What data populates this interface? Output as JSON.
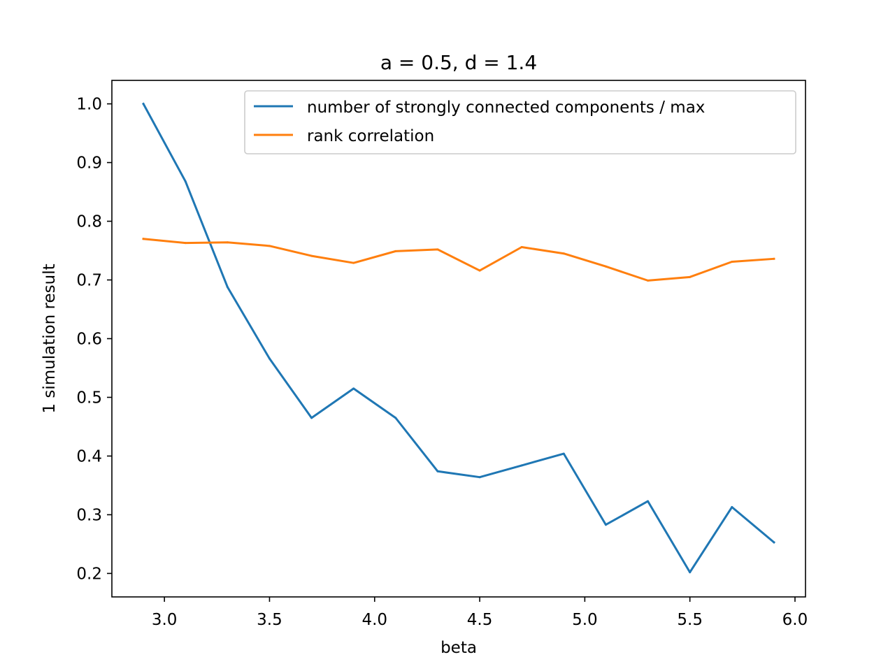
{
  "chart_data": {
    "type": "line",
    "title": "a = 0.5, d = 1.4",
    "xlabel": "beta",
    "ylabel": "1 simulation result",
    "xlim": [
      2.75,
      6.05
    ],
    "ylim": [
      0.16,
      1.04
    ],
    "xticks": [
      3.0,
      3.5,
      4.0,
      4.5,
      5.0,
      5.5,
      6.0
    ],
    "xtick_labels": [
      "3.0",
      "3.5",
      "4.0",
      "4.5",
      "5.0",
      "5.5",
      "6.0"
    ],
    "yticks": [
      0.2,
      0.3,
      0.4,
      0.5,
      0.6,
      0.7,
      0.8,
      0.9,
      1.0
    ],
    "ytick_labels": [
      "0.2",
      "0.3",
      "0.4",
      "0.5",
      "0.6",
      "0.7",
      "0.8",
      "0.9",
      "1.0"
    ],
    "grid": false,
    "legend_position": "top-right",
    "x": [
      2.9,
      3.1,
      3.3,
      3.5,
      3.7,
      3.9,
      4.1,
      4.3,
      4.5,
      4.7,
      4.9,
      5.1,
      5.3,
      5.5,
      5.7,
      5.9
    ],
    "series": [
      {
        "name": "number of strongly connected components / max",
        "color": "#1f77b4",
        "values": [
          1.0,
          0.868,
          0.688,
          0.566,
          0.465,
          0.515,
          0.465,
          0.374,
          0.364,
          0.384,
          0.404,
          0.283,
          0.323,
          0.202,
          0.313,
          0.253
        ]
      },
      {
        "name": "rank correlation",
        "color": "#ff7f0e",
        "values": [
          0.77,
          0.763,
          0.764,
          0.758,
          0.741,
          0.729,
          0.749,
          0.752,
          0.716,
          0.756,
          0.745,
          0.723,
          0.699,
          0.705,
          0.731,
          0.736
        ]
      }
    ]
  }
}
